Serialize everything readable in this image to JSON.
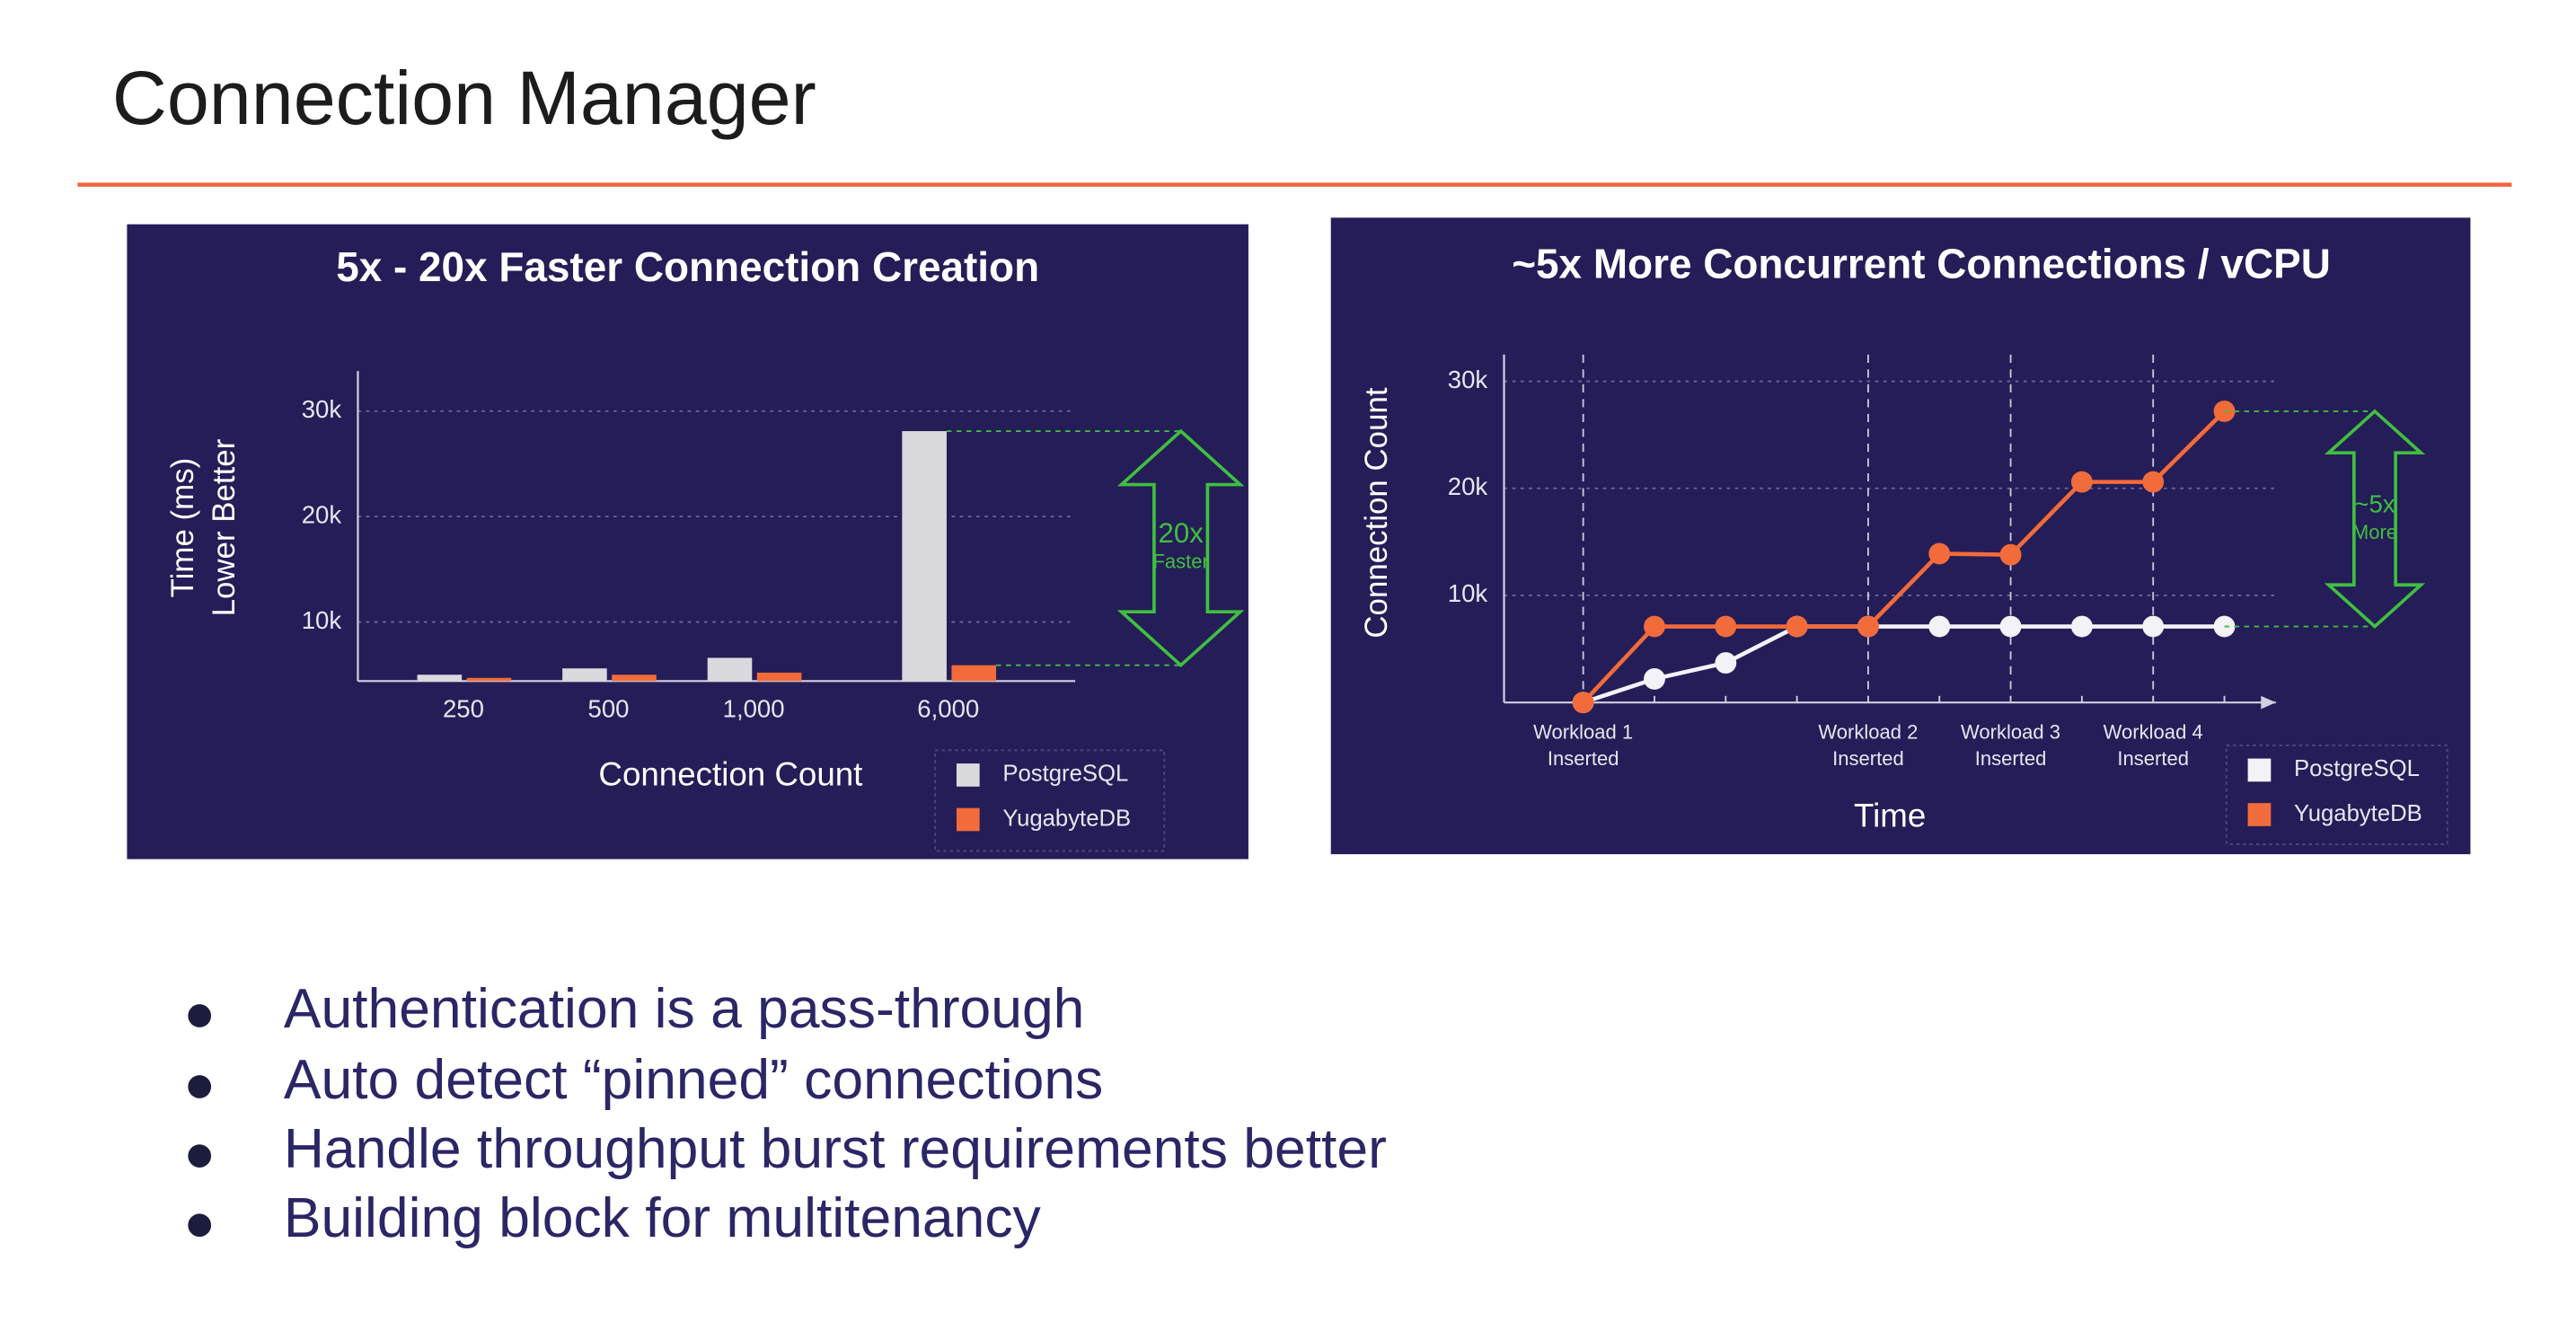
{
  "title": "Connection Manager",
  "bullets": [
    "Authentication is a pass-through",
    "Auto detect “pinned” connections",
    "Handle throughput burst requirements better",
    "Building block for multitenancy"
  ],
  "chart_data": [
    {
      "type": "bar",
      "title": "5x - 20x Faster Connection Creation",
      "xlabel": "Connection Count",
      "ylabel": [
        "Time (ms)",
        "Lower Better"
      ],
      "categories": [
        "250",
        "500",
        "1,000",
        "6,000"
      ],
      "series": [
        {
          "name": "PostgreSQL",
          "color": "#d9d9de",
          "values": [
            5000,
            5600,
            6600,
            28100
          ]
        },
        {
          "name": "YugabyteDB",
          "color": "#f26b3a",
          "values": [
            4700,
            5000,
            5200,
            5900
          ]
        }
      ],
      "ylim": [
        4400,
        33800
      ],
      "yticks": [
        {
          "value": 10000,
          "label": "10k"
        },
        {
          "value": 20000,
          "label": "20k"
        },
        {
          "value": 30000,
          "label": "30k"
        }
      ],
      "grid": true,
      "annotation": {
        "label": "20x",
        "note": "Faster",
        "color": "#3fbf3f"
      }
    },
    {
      "type": "line",
      "title": "~5x More Concurrent Connections / vCPU",
      "xlabel": "Time",
      "ylabel": [
        "Connection Count"
      ],
      "categories": [
        "Workload 1 Inserted",
        null,
        null,
        null,
        "Workload 2 Inserted",
        null,
        "Workload 3 Inserted",
        null,
        "Workload 4 Inserted",
        null
      ],
      "series": [
        {
          "name": "PostgreSQL",
          "color": "#f2f2f7",
          "values": [
            0,
            2200,
            3700,
            7100,
            7100,
            7100,
            7100,
            7100,
            7100,
            7100
          ]
        },
        {
          "name": "YugabyteDB",
          "color": "#f26b3a",
          "values": [
            0,
            7100,
            7100,
            7100,
            7100,
            13900,
            13800,
            20600,
            20600,
            27200
          ]
        }
      ],
      "ylim": [
        0,
        32500
      ],
      "yticks": [
        {
          "value": 10000,
          "label": "10k"
        },
        {
          "value": 20000,
          "label": "20k"
        },
        {
          "value": 30000,
          "label": "30k"
        }
      ],
      "grid": true,
      "annotation": {
        "label": "~5x",
        "note": "More",
        "color": "#3fbf3f"
      }
    }
  ]
}
